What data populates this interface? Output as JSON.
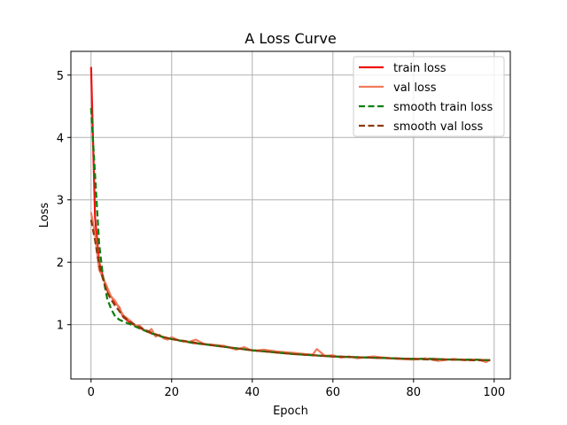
{
  "chart_data": {
    "type": "line",
    "title": "A Loss Curve",
    "xlabel": "Epoch",
    "ylabel": "Loss",
    "xlim": [
      -5,
      104
    ],
    "ylim": [
      0.13,
      5.38
    ],
    "xticks": [
      0,
      20,
      40,
      60,
      80,
      100
    ],
    "yticks": [
      1,
      2,
      3,
      4,
      5
    ],
    "grid": true,
    "legend_position": "top-right",
    "series": [
      {
        "name": "train loss",
        "color": "#ee1111",
        "style": "solid",
        "x": [
          0,
          1,
          2,
          3,
          4,
          5,
          6,
          7,
          8,
          10,
          12,
          15,
          18,
          20,
          25,
          30,
          35,
          40,
          45,
          50,
          55,
          60,
          65,
          70,
          75,
          80,
          85,
          90,
          95,
          99
        ],
        "values": [
          5.13,
          2.72,
          2.0,
          1.76,
          1.55,
          1.45,
          1.35,
          1.28,
          1.12,
          1.02,
          0.95,
          0.86,
          0.8,
          0.77,
          0.71,
          0.67,
          0.63,
          0.59,
          0.56,
          0.53,
          0.51,
          0.49,
          0.48,
          0.47,
          0.46,
          0.45,
          0.45,
          0.44,
          0.44,
          0.43
        ]
      },
      {
        "name": "val loss",
        "color": "#f07c5c",
        "style": "solid",
        "x": [
          0,
          1,
          2,
          3,
          4,
          5,
          6,
          7,
          8,
          9,
          10,
          11,
          12,
          13,
          14,
          15,
          16,
          17,
          18,
          19,
          20,
          22,
          24,
          26,
          28,
          30,
          33,
          36,
          38,
          40,
          43,
          46,
          50,
          53,
          55,
          56,
          58,
          60,
          62,
          64,
          66,
          70,
          73,
          76,
          80,
          83,
          86,
          90,
          93,
          96,
          98,
          99
        ],
        "values": [
          2.8,
          2.45,
          1.88,
          1.75,
          1.6,
          1.45,
          1.38,
          1.26,
          1.15,
          1.1,
          1.05,
          0.98,
          0.99,
          0.92,
          0.88,
          0.93,
          0.81,
          0.84,
          0.78,
          0.76,
          0.8,
          0.74,
          0.72,
          0.76,
          0.69,
          0.68,
          0.66,
          0.6,
          0.64,
          0.58,
          0.6,
          0.57,
          0.55,
          0.53,
          0.52,
          0.61,
          0.5,
          0.51,
          0.47,
          0.49,
          0.46,
          0.49,
          0.47,
          0.45,
          0.44,
          0.46,
          0.42,
          0.45,
          0.43,
          0.44,
          0.4,
          0.44
        ]
      },
      {
        "name": "smooth train loss",
        "color": "#0a7f0a",
        "style": "dashed",
        "x": [
          0,
          1,
          2,
          3,
          4,
          5,
          6,
          7,
          8,
          10,
          12,
          15,
          18,
          20,
          25,
          30,
          35,
          40,
          45,
          50,
          55,
          60,
          65,
          70,
          75,
          80,
          85,
          90,
          95,
          99
        ],
        "values": [
          4.47,
          3.4,
          2.3,
          1.75,
          1.42,
          1.25,
          1.13,
          1.08,
          1.05,
          1.0,
          0.94,
          0.86,
          0.8,
          0.77,
          0.71,
          0.67,
          0.63,
          0.59,
          0.56,
          0.53,
          0.51,
          0.49,
          0.48,
          0.47,
          0.46,
          0.45,
          0.45,
          0.44,
          0.44,
          0.43
        ]
      },
      {
        "name": "smooth val loss",
        "color": "#8b3a0a",
        "style": "dashed",
        "x": [
          0,
          1,
          2,
          3,
          4,
          5,
          6,
          7,
          8,
          10,
          12,
          15,
          18,
          20,
          25,
          30,
          35,
          40,
          45,
          50,
          55,
          60,
          65,
          70,
          75,
          80,
          85,
          90,
          95,
          99
        ],
        "values": [
          2.68,
          2.35,
          1.95,
          1.72,
          1.52,
          1.4,
          1.3,
          1.22,
          1.13,
          1.03,
          0.96,
          0.87,
          0.8,
          0.77,
          0.72,
          0.67,
          0.63,
          0.59,
          0.56,
          0.53,
          0.51,
          0.49,
          0.48,
          0.47,
          0.46,
          0.45,
          0.44,
          0.44,
          0.43,
          0.43
        ]
      }
    ]
  }
}
